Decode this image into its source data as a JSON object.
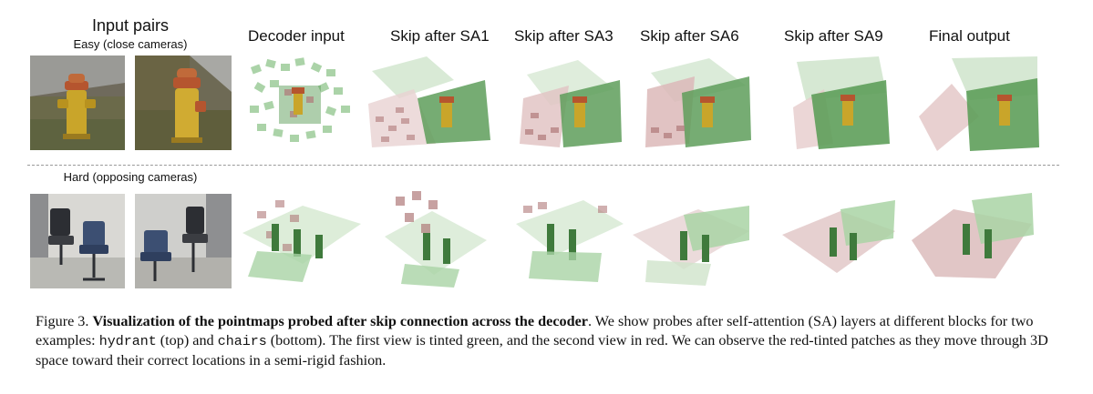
{
  "column_headers": {
    "input": "Input pairs",
    "decoder_input": "Decoder input",
    "skip_sa1": "Skip after SA1",
    "skip_sa3": "Skip after SA3",
    "skip_sa6": "Skip after SA6",
    "skip_sa9": "Skip after SA9",
    "final_output": "Final output"
  },
  "rows": {
    "easy_label": "Easy  (close cameras)",
    "hard_label": "Hard (opposing cameras)"
  },
  "caption": {
    "prefix": "Figure 3. ",
    "bold": "Visualization of the pointmaps probed after skip connection across the decoder",
    "part1": ". We show probes after self-attention (SA) layers at different blocks for two examples: ",
    "code1": "hydrant",
    "part2": " (top) and ",
    "code2": "chairs",
    "part3": " (bottom). The first view is tinted green, and the second view in red. We can observe the red-tinted patches as they move through 3D space toward their correct locations in a semi-rigid fashion."
  },
  "colors": {
    "green_tint": "#5e9e5a",
    "red_tint": "#b07a7a",
    "hydrant_yellow": "#c9a52a",
    "hydrant_red": "#b5552f"
  }
}
